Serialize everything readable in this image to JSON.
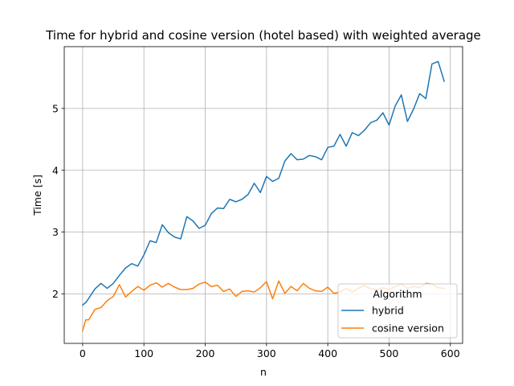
{
  "chart_data": {
    "type": "line",
    "title": "Time for hybrid and cosine version (hotel based) with weighted average",
    "xlabel": "n",
    "ylabel": "Time [s]",
    "xlim": [
      -30,
      620
    ],
    "ylim": [
      1.2,
      6.0
    ],
    "xticks": [
      0,
      100,
      200,
      300,
      400,
      500,
      600
    ],
    "yticks": [
      2,
      3,
      4,
      5
    ],
    "grid": true,
    "legend": {
      "title": "Algorithm",
      "position": "lower-right"
    },
    "x": [
      0,
      5,
      10,
      20,
      30,
      40,
      50,
      60,
      70,
      80,
      90,
      100,
      110,
      120,
      130,
      140,
      150,
      160,
      170,
      180,
      190,
      200,
      210,
      220,
      230,
      240,
      250,
      260,
      270,
      280,
      290,
      300,
      310,
      320,
      330,
      340,
      350,
      360,
      370,
      380,
      390,
      400,
      410,
      420,
      430,
      440,
      450,
      460,
      470,
      480,
      490,
      500,
      510,
      520,
      530,
      540,
      550,
      560,
      570,
      580,
      590
    ],
    "series": [
      {
        "name": "hybrid",
        "color": "#1f77b4",
        "values": [
          1.82,
          1.86,
          1.93,
          2.08,
          2.17,
          2.09,
          2.17,
          2.3,
          2.42,
          2.49,
          2.45,
          2.63,
          2.86,
          2.83,
          3.12,
          2.99,
          2.92,
          2.89,
          3.25,
          3.18,
          3.06,
          3.11,
          3.3,
          3.39,
          3.38,
          3.53,
          3.49,
          3.53,
          3.61,
          3.79,
          3.64,
          3.9,
          3.82,
          3.87,
          4.15,
          4.27,
          4.17,
          4.18,
          4.24,
          4.22,
          4.17,
          4.37,
          4.39,
          4.58,
          4.39,
          4.61,
          4.56,
          4.65,
          4.77,
          4.81,
          4.93,
          4.73,
          5.04,
          5.22,
          4.79,
          4.99,
          5.24,
          5.16,
          5.72,
          5.76,
          5.44
        ]
      },
      {
        "name": "cosine version",
        "color": "#ff7f0e",
        "values": [
          1.4,
          1.58,
          1.58,
          1.75,
          1.78,
          1.89,
          1.96,
          2.15,
          1.95,
          2.04,
          2.12,
          2.06,
          2.14,
          2.18,
          2.11,
          2.17,
          2.11,
          2.07,
          2.07,
          2.09,
          2.16,
          2.19,
          2.12,
          2.14,
          2.04,
          2.08,
          1.96,
          2.04,
          2.05,
          2.03,
          2.1,
          2.2,
          1.92,
          2.21,
          2.01,
          2.12,
          2.05,
          2.17,
          2.09,
          2.05,
          2.04,
          2.11,
          2.01,
          2.03,
          2.09,
          2.03,
          2.09,
          2.14,
          2.08,
          2.07,
          2.1,
          2.07,
          2.12,
          2.16,
          2.09,
          2.12,
          2.1,
          2.17,
          2.16,
          2.1,
          2.09
        ]
      }
    ]
  }
}
